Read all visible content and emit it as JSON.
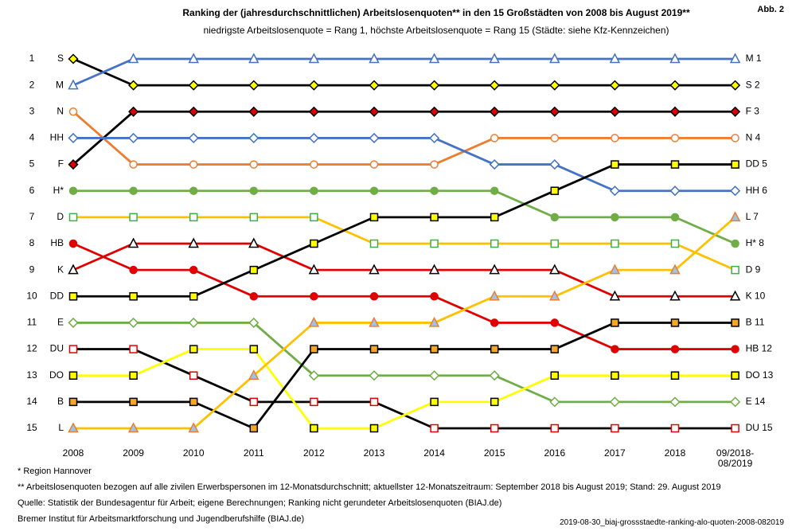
{
  "chart_data": {
    "type": "bump",
    "title": "Ranking der (jahresdurchschnittlichen) Arbeitslosenquoten** in den 15 Großstädten von 2008 bis August 2019**",
    "subtitle": "niedrigste Arbeitslosenquote = Rang 1, höchste Arbeitslosenquote = Rang 15 (Städte: siehe Kfz-Kennzeichen)",
    "figure_label": "Abb. 2",
    "categories": [
      "2008",
      "2009",
      "2010",
      "2011",
      "2012",
      "2013",
      "2014",
      "2015",
      "2016",
      "2017",
      "2018",
      "09/2018-08/2019"
    ],
    "ylim": [
      1,
      15
    ],
    "yticks": [
      1,
      2,
      3,
      4,
      5,
      6,
      7,
      8,
      9,
      10,
      11,
      12,
      13,
      14,
      15
    ],
    "series": [
      {
        "name": "S",
        "end_label": "S 2",
        "color": "#000000",
        "marker": "diamond",
        "marker_fill": "#ffff00",
        "marker_stroke": "#000000",
        "values": [
          1,
          2,
          2,
          2,
          2,
          2,
          2,
          2,
          2,
          2,
          2,
          2
        ]
      },
      {
        "name": "M",
        "end_label": "M 1",
        "color": "#4472c4",
        "marker": "triangle",
        "marker_fill": "#ffffff",
        "marker_stroke": "#4472c4",
        "values": [
          2,
          1,
          1,
          1,
          1,
          1,
          1,
          1,
          1,
          1,
          1,
          1
        ]
      },
      {
        "name": "F",
        "end_label": "F 3",
        "color": "#000000",
        "marker": "diamond",
        "marker_fill": "#e00000",
        "marker_stroke": "#000000",
        "values": [
          5,
          3,
          3,
          3,
          3,
          3,
          3,
          3,
          3,
          3,
          3,
          3
        ]
      },
      {
        "name": "N",
        "end_label": "N 4",
        "color": "#ed7d31",
        "marker": "circle",
        "marker_fill": "#ffffff",
        "marker_stroke": "#ed7d31",
        "values": [
          3,
          5,
          5,
          5,
          5,
          5,
          5,
          4,
          4,
          4,
          4,
          4
        ]
      },
      {
        "name": "HH",
        "end_label": "HH 6",
        "color": "#4472c4",
        "marker": "diamond",
        "marker_fill": "#ffffff",
        "marker_stroke": "#4472c4",
        "values": [
          4,
          4,
          4,
          4,
          4,
          4,
          4,
          5,
          5,
          6,
          6,
          6
        ]
      },
      {
        "name": "H*",
        "end_label": "H* 8",
        "color": "#70ad47",
        "marker": "circle",
        "marker_fill": "#70ad47",
        "marker_stroke": "#70ad47",
        "values": [
          6,
          6,
          6,
          6,
          6,
          6,
          6,
          6,
          7,
          7,
          7,
          8
        ]
      },
      {
        "name": "D",
        "end_label": "D 9",
        "color": "#ffc000",
        "marker": "square",
        "marker_fill": "#ffffff",
        "marker_stroke": "#3cb043",
        "values": [
          7,
          7,
          7,
          7,
          7,
          8,
          8,
          8,
          8,
          8,
          8,
          9
        ]
      },
      {
        "name": "HB",
        "end_label": "HB 12",
        "color": "#e00000",
        "marker": "circle",
        "marker_fill": "#e00000",
        "marker_stroke": "#e00000",
        "values": [
          8,
          9,
          9,
          10,
          10,
          10,
          10,
          11,
          11,
          12,
          12,
          12
        ]
      },
      {
        "name": "K",
        "end_label": "K 10",
        "color": "#e00000",
        "marker": "triangle",
        "marker_fill": "#ffffff",
        "marker_stroke": "#000000",
        "values": [
          9,
          8,
          8,
          8,
          9,
          9,
          9,
          9,
          9,
          10,
          10,
          10
        ]
      },
      {
        "name": "DD",
        "end_label": "DD 5",
        "color": "#000000",
        "marker": "square",
        "marker_fill": "#ffff00",
        "marker_stroke": "#000000",
        "values": [
          10,
          10,
          10,
          9,
          8,
          7,
          7,
          7,
          6,
          5,
          5,
          5
        ]
      },
      {
        "name": "E",
        "end_label": "E 14",
        "color": "#70ad47",
        "marker": "diamond",
        "marker_fill": "#ffffff",
        "marker_stroke": "#70ad47",
        "values": [
          11,
          11,
          11,
          11,
          13,
          13,
          13,
          13,
          14,
          14,
          14,
          14
        ]
      },
      {
        "name": "DU",
        "end_label": "DU 15",
        "color": "#000000",
        "marker": "square",
        "marker_fill": "#ffffff",
        "marker_stroke": "#e00000",
        "values": [
          12,
          12,
          13,
          14,
          14,
          14,
          15,
          15,
          15,
          15,
          15,
          15
        ]
      },
      {
        "name": "DO",
        "end_label": "DO 13",
        "color": "#ffff00",
        "marker": "square",
        "marker_fill": "#ffff00",
        "marker_stroke": "#000000",
        "values": [
          13,
          13,
          12,
          12,
          15,
          15,
          14,
          14,
          13,
          13,
          13,
          13
        ]
      },
      {
        "name": "B",
        "end_label": "B 11",
        "color": "#000000",
        "marker": "square",
        "marker_fill": "#f5a623",
        "marker_stroke": "#000000",
        "values": [
          14,
          14,
          14,
          15,
          12,
          12,
          12,
          12,
          12,
          11,
          11,
          11
        ]
      },
      {
        "name": "L",
        "end_label": "L 7",
        "color": "#ffc000",
        "marker": "triangle",
        "marker_fill": "#9dc3e6",
        "marker_stroke": "#ed7d31",
        "values": [
          15,
          15,
          15,
          13,
          11,
          11,
          11,
          10,
          10,
          9,
          9,
          7
        ]
      }
    ],
    "footnotes": [
      "* Region Hannover",
      "** Arbeitslosenquoten bezogen auf alle zivilen Erwerbspersonen im 12-Monatsdurchschnitt; aktuellster 12-Monatszeitraum: September 2018 bis August 2019; Stand: 29. August 2019",
      "Quelle: Statistik der Bundesagentur für Arbeit; eigene Berechnungen; Ranking nicht gerundeter Arbeitslosenquoten (BIAJ.de)",
      "Bremer Institut für Arbeitsmarktforschung und Jugendberufshilfe (BIAJ.de)"
    ],
    "filename": "2019-08-30_biaj-grossstaedte-ranking-alo-quoten-2008-082019"
  }
}
